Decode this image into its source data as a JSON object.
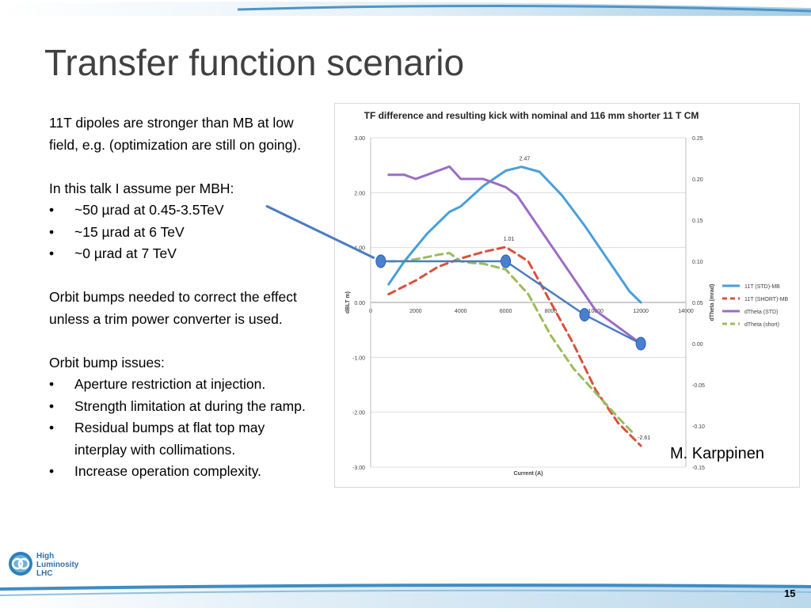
{
  "slide": {
    "title": "Transfer function scenario",
    "page_number": "15",
    "credit": "M. Karppinen",
    "logo_text": [
      "High",
      "Luminosity",
      "LHC"
    ]
  },
  "text": {
    "intro": "11T dipoles are stronger than MB at low field, e.g. (optimization are still on going).",
    "assume_header": "In this talk I assume per MBH:",
    "assume_bullets": [
      "~50 µrad at 0.45-3.5TeV",
      "~15 µrad at 6 TeV",
      "~0 µrad at 7 TeV"
    ],
    "orbit_paragraph": "Orbit bumps needed to correct the effect unless a trim power converter is used.",
    "issues_header": "Orbit bump issues:",
    "issues_bullets": [
      "Aperture restriction at injection.",
      "Strength limitation at during the ramp.",
      "Residual bumps at flat top may interplay with collimations.",
      "Increase operation complexity."
    ]
  },
  "chart_data": {
    "type": "line",
    "title": "TF difference and resulting kick with nominal and 116 mm shorter 11 T CM",
    "xlabel": "Current (A)",
    "ylabel_left": "dBLT m)",
    "ylabel_right": "dTheta (mrad)",
    "xlim": [
      0,
      14000
    ],
    "x_ticks": [
      "0",
      "2000",
      "4000",
      "6000",
      "8000",
      "10000",
      "12000",
      "14000"
    ],
    "ylim_left": [
      -3.0,
      3.0
    ],
    "y_left_ticks": [
      "3.00",
      "2.00",
      "1.00",
      "0.00",
      "-1.00",
      "-2.00",
      "-3.00"
    ],
    "ylim_right": [
      -0.15,
      0.25
    ],
    "y_right_ticks": [
      "0.25",
      "0.20",
      "0.15",
      "0.10",
      "0.05",
      "0.00",
      "-0.05",
      "-0.10",
      "-0.15"
    ],
    "legend_position": "right",
    "grid": true,
    "series": [
      {
        "name": "11T (STD)-MB",
        "axis": "left",
        "color": "#4a9fd8",
        "dash": false,
        "x": [
          800,
          1500,
          2500,
          3500,
          4000,
          5000,
          6000,
          6700,
          7500,
          8500,
          9500,
          10500,
          11500,
          12000
        ],
        "y": [
          0.33,
          0.75,
          1.25,
          1.65,
          1.75,
          2.12,
          2.4,
          2.47,
          2.38,
          1.95,
          1.4,
          0.8,
          0.2,
          0.0
        ]
      },
      {
        "name": "11T (SHORT)-MB",
        "axis": "left",
        "color": "#d9503b",
        "dash": true,
        "x": [
          800,
          2000,
          3000,
          4000,
          5000,
          6000,
          7000,
          8000,
          9000,
          10000,
          11000,
          12000
        ],
        "y": [
          0.15,
          0.4,
          0.65,
          0.8,
          0.92,
          1.01,
          0.75,
          0.0,
          -0.75,
          -1.6,
          -2.2,
          -2.61
        ]
      },
      {
        "name": "dTheta (STD)",
        "axis": "right",
        "color": "#9b6cc4",
        "dash": false,
        "x": [
          800,
          1500,
          2000,
          2500,
          3000,
          3500,
          4000,
          4500,
          5000,
          5500,
          6000,
          6500,
          7000,
          8000,
          9000,
          10000,
          11000,
          12000
        ],
        "y": [
          0.205,
          0.205,
          0.2,
          0.205,
          0.21,
          0.215,
          0.2,
          0.2,
          0.2,
          0.195,
          0.19,
          0.18,
          0.16,
          0.12,
          0.08,
          0.04,
          0.02,
          0.0
        ]
      },
      {
        "name": "dTheta (short)",
        "axis": "right",
        "color": "#9bbb59",
        "dash": true,
        "x": [
          800,
          1500,
          2500,
          3000,
          3500,
          4000,
          4500,
          5000,
          6000,
          7000,
          8000,
          9000,
          10000,
          11000,
          11700
        ],
        "y": [
          0.1,
          0.1,
          0.105,
          0.108,
          0.11,
          0.1,
          0.098,
          0.097,
          0.09,
          0.06,
          0.01,
          -0.03,
          -0.06,
          -0.09,
          -0.11
        ]
      }
    ],
    "annotations": [
      {
        "text": "2.47",
        "x": 6700,
        "y": 2.47,
        "axis": "left"
      },
      {
        "text": "1.01",
        "x": 6000,
        "y": 1.01,
        "axis": "left"
      },
      {
        "text": "-2.61",
        "x": 12000,
        "y": -2.61,
        "axis": "left"
      }
    ],
    "overlay": {
      "color": "#4a7cc0",
      "points": [
        {
          "x": 450,
          "y": 0.1
        },
        {
          "x": 6000,
          "y": 0.1
        },
        {
          "x": 9500,
          "y": 0.035
        },
        {
          "x": 12000,
          "y": 0.0
        }
      ],
      "axis": "right",
      "arrow_label": "In this talk I assume per MBH:"
    }
  }
}
